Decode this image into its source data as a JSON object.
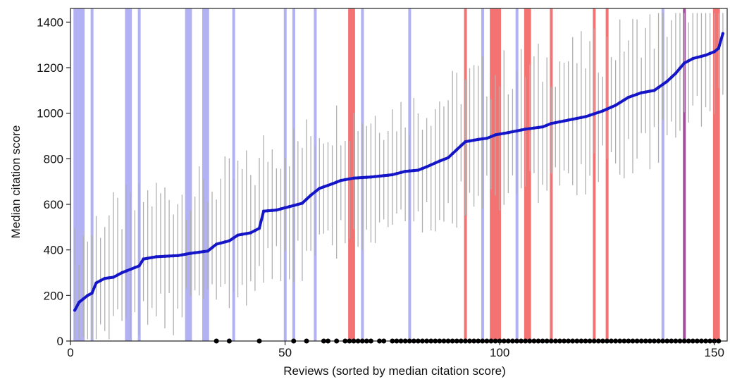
{
  "chart_data": {
    "type": "line",
    "xlabel": "Reviews (sorted by median citation score)",
    "ylabel": "Median citation score",
    "xlim": [
      0,
      153
    ],
    "ylim": [
      0,
      1460
    ],
    "x_ticks": [
      0,
      50,
      100,
      150
    ],
    "y_ticks": [
      0,
      200,
      400,
      600,
      800,
      1000,
      1200,
      1400
    ],
    "grid": false,
    "legend": "none",
    "colors": {
      "median_line": "#1515c8",
      "range_bars": "#b0b0b0",
      "blue_bands": "#a9a9f2",
      "red_bands": "#f26a6a",
      "purple_band": "#a0509a",
      "markers": "#000000"
    },
    "median_curve": [
      [
        1,
        135
      ],
      [
        2,
        170
      ],
      [
        3,
        185
      ],
      [
        4,
        200
      ],
      [
        5,
        210
      ],
      [
        6,
        255
      ],
      [
        7,
        265
      ],
      [
        8,
        275
      ],
      [
        10,
        280
      ],
      [
        12,
        300
      ],
      [
        14,
        315
      ],
      [
        16,
        330
      ],
      [
        17,
        360
      ],
      [
        20,
        370
      ],
      [
        25,
        375
      ],
      [
        28,
        385
      ],
      [
        32,
        395
      ],
      [
        34,
        425
      ],
      [
        37,
        440
      ],
      [
        39,
        465
      ],
      [
        42,
        475
      ],
      [
        44,
        495
      ],
      [
        45,
        570
      ],
      [
        48,
        575
      ],
      [
        51,
        590
      ],
      [
        54,
        605
      ],
      [
        56,
        640
      ],
      [
        58,
        670
      ],
      [
        61,
        690
      ],
      [
        63,
        705
      ],
      [
        66,
        715
      ],
      [
        70,
        720
      ],
      [
        75,
        730
      ],
      [
        78,
        745
      ],
      [
        81,
        750
      ],
      [
        83,
        765
      ],
      [
        86,
        790
      ],
      [
        88,
        805
      ],
      [
        90,
        840
      ],
      [
        92,
        875
      ],
      [
        95,
        885
      ],
      [
        97,
        890
      ],
      [
        99,
        905
      ],
      [
        102,
        915
      ],
      [
        106,
        930
      ],
      [
        110,
        940
      ],
      [
        112,
        955
      ],
      [
        116,
        970
      ],
      [
        120,
        985
      ],
      [
        124,
        1010
      ],
      [
        127,
        1035
      ],
      [
        130,
        1070
      ],
      [
        133,
        1090
      ],
      [
        136,
        1100
      ],
      [
        139,
        1140
      ],
      [
        141,
        1175
      ],
      [
        143,
        1220
      ],
      [
        145,
        1240
      ],
      [
        148,
        1255
      ],
      [
        150,
        1270
      ],
      [
        151,
        1285
      ],
      [
        152,
        1350
      ]
    ],
    "blue_bands": [
      [
        1,
        4
      ],
      [
        5,
        6
      ],
      [
        13,
        15
      ],
      [
        16,
        17
      ],
      [
        27,
        29
      ],
      [
        31,
        33
      ],
      [
        38,
        39
      ],
      [
        50,
        51
      ],
      [
        52,
        53
      ],
      [
        57,
        58
      ],
      [
        68,
        69
      ],
      [
        79,
        80
      ],
      [
        96,
        97
      ],
      [
        104,
        105
      ],
      [
        138,
        139
      ]
    ],
    "red_bands": [
      [
        65,
        67
      ],
      [
        92,
        93
      ],
      [
        98,
        101
      ],
      [
        106,
        108
      ],
      [
        112,
        113
      ],
      [
        122,
        123
      ],
      [
        125,
        126
      ],
      [
        150,
        152
      ]
    ],
    "purple_bands": [
      [
        143,
        144
      ]
    ],
    "marker_y": 0,
    "marker_x": [
      34,
      37,
      44,
      52,
      55,
      59,
      60,
      62,
      64,
      65,
      66,
      67,
      68,
      69,
      70,
      72,
      73,
      75,
      76,
      77,
      78,
      79,
      80,
      81,
      82,
      83,
      84,
      85,
      86,
      87,
      88,
      89,
      90,
      91,
      92,
      93,
      94,
      95,
      96,
      97,
      98,
      99,
      100,
      101,
      102,
      103,
      104,
      105,
      106,
      107,
      108,
      109,
      110,
      111,
      112,
      113,
      114,
      115,
      116,
      117,
      118,
      119,
      120,
      121,
      122,
      123,
      124,
      125,
      126,
      127,
      128,
      129,
      130,
      131,
      132,
      133,
      134,
      135,
      136,
      137,
      138,
      139,
      140,
      141,
      142,
      143,
      144,
      145,
      146,
      147,
      148,
      149,
      150,
      151
    ]
  }
}
